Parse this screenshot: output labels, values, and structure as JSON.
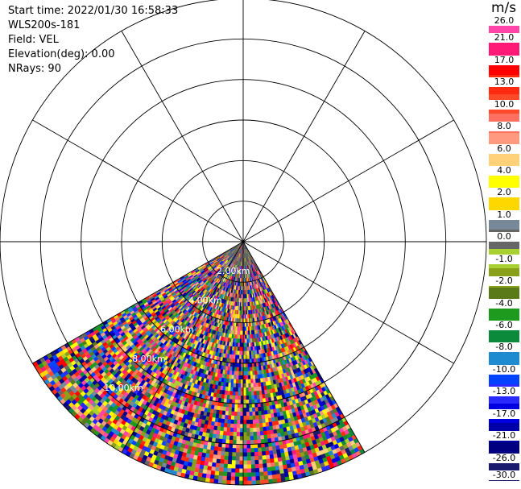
{
  "info": {
    "start_time": "Start time: 2022/01/30 16:58:33",
    "instrument": "WLS200s-181",
    "field": "Field: VEL",
    "elevation": "Elevation(deg): 0.00",
    "nrays": "NRays: 90"
  },
  "colorbar": {
    "unit": "m/s",
    "colors": [
      "#1a1a6e",
      "#000080",
      "#0000a8",
      "#0000e0",
      "#2a2aff",
      "#0044ff",
      "#1e8ad0",
      "#0a8a3a",
      "#1e9a1e",
      "#5a7a1a",
      "#88a01a",
      "#a8d030",
      "#666666",
      "#778899",
      "#ffd700",
      "#ffff00",
      "#ffd27a",
      "#ff9a80",
      "#ff7060",
      "#ff4a2a",
      "#ff2a10",
      "#ff0000",
      "#ff1a78",
      "#ff44aa"
    ],
    "labels": [
      "-30.0",
      "-26.0",
      "-21.0",
      "-17.0",
      "-13.0",
      "-10.0",
      "-8.0",
      "-6.0",
      "-4.0",
      "-2.0",
      "-1.0",
      "0.0",
      "1.0",
      "2.0",
      "4.0",
      "6.0",
      "8.0",
      "10.0",
      "13.0",
      "17.0",
      "21.0",
      "26.0"
    ]
  },
  "chart_data": {
    "type": "heatmap",
    "projection": "polar-ppi",
    "field": "VEL",
    "units": "m/s",
    "ring_labels": [
      "2.00km",
      "4.00km",
      "6.00km",
      "8.00km",
      "10.00km"
    ],
    "ring_spacing_km": 2.0,
    "max_range_km": 12.0,
    "spoke_angles_deg": [
      0,
      30,
      60,
      90,
      120,
      150,
      180,
      210,
      240,
      270,
      300,
      330
    ],
    "scan_sector_deg": [
      150,
      240
    ],
    "value_range": [
      -30,
      26
    ]
  }
}
